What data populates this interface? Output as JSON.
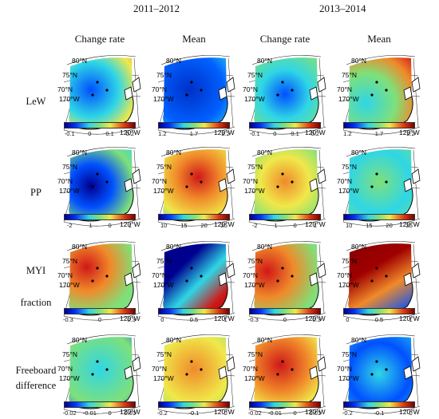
{
  "periods": [
    "2011–2012",
    "2013–2014"
  ],
  "column_headers": [
    "Change rate",
    "Mean",
    "Change rate",
    "Mean"
  ],
  "row_labels": [
    "LeW",
    "PP",
    "MYI",
    "fraction",
    "Freeboard",
    "difference"
  ],
  "map_labels": {
    "lat80": "80°N",
    "lat75": "75°N",
    "lat70": "70°N",
    "lon170": "170°W",
    "lon120": "120°W"
  },
  "colorbars": {
    "lew_rate": [
      "-0.1",
      "0",
      "0.1",
      "0.2"
    ],
    "lew_mean": [
      "1.2",
      "1.7",
      "2.2"
    ],
    "pp_rate": [
      "-2",
      "-1",
      "0",
      "1"
    ],
    "pp_mean": [
      "10",
      "15",
      "20",
      "25"
    ],
    "myi_rate": [
      "-0.3",
      "0",
      "0.3"
    ],
    "myi_mean": [
      "0",
      "0.5",
      "1"
    ],
    "fb_rate": [
      "-0.02",
      "-0.01",
      "0",
      "0.01"
    ],
    "fb_mean": [
      "-0.2",
      "-0.1",
      "0"
    ]
  },
  "colors": {
    "jet_dark_blue": "#00008f",
    "jet_blue": "#0050ff",
    "jet_cyan": "#2fd6e6",
    "jet_green": "#7fe07a",
    "jet_yellow": "#f0e84a",
    "jet_orange": "#f08a2a",
    "jet_red": "#d01818",
    "jet_dark_red": "#7a0000"
  }
}
